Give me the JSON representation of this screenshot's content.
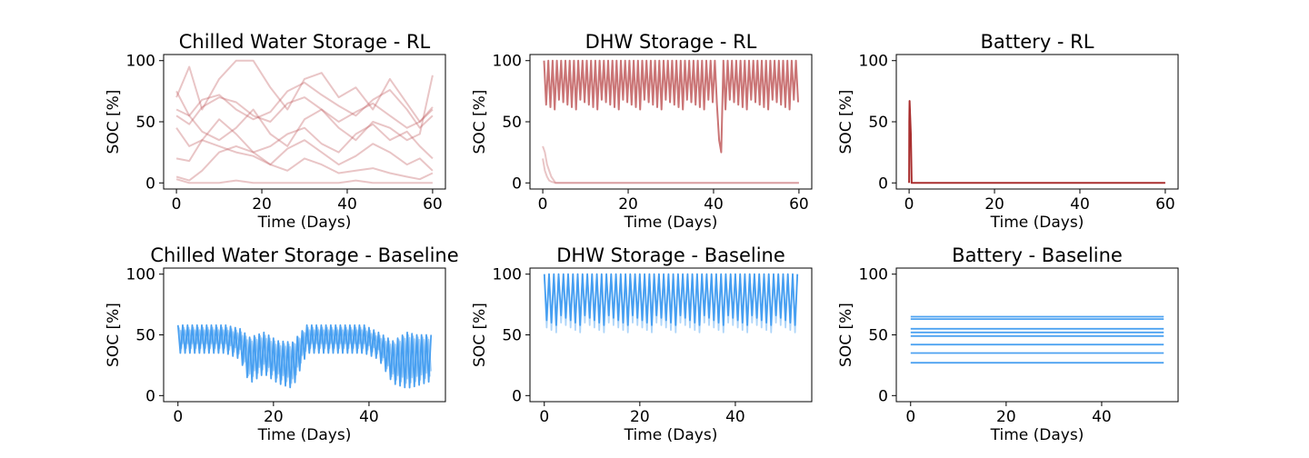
{
  "colors": {
    "rl": "#c0595b",
    "baseline": "#3a98f0",
    "axis": "#000000",
    "background": "#ffffff"
  },
  "chart_data": [
    {
      "id": "cw-rl",
      "type": "line",
      "title": "Chilled Water Storage - RL",
      "xlabel": "Time (Days)",
      "ylabel": "SOC [%]",
      "xlim": [
        -3,
        63
      ],
      "ylim": [
        -5,
        105
      ],
      "xticks": [
        0,
        20,
        40,
        60
      ],
      "yticks": [
        0,
        50,
        100
      ],
      "style": "rl",
      "series": [
        {
          "x": [
            0,
            3,
            6,
            10,
            14,
            18,
            22,
            26,
            30,
            34,
            38,
            42,
            46,
            50,
            54,
            57,
            60
          ],
          "values": [
            70,
            95,
            60,
            85,
            100,
            100,
            78,
            60,
            85,
            90,
            70,
            78,
            60,
            85,
            65,
            50,
            60
          ]
        },
        {
          "x": [
            0,
            3,
            6,
            10,
            14,
            18,
            22,
            26,
            30,
            34,
            38,
            42,
            46,
            50,
            54,
            57,
            60
          ],
          "values": [
            60,
            55,
            68,
            72,
            60,
            52,
            58,
            75,
            82,
            72,
            63,
            55,
            68,
            76,
            60,
            45,
            55
          ]
        },
        {
          "x": [
            0,
            3,
            6,
            10,
            14,
            18,
            22,
            26,
            30,
            34,
            38,
            42,
            46,
            50,
            54,
            57,
            60
          ],
          "values": [
            55,
            48,
            62,
            70,
            66,
            55,
            50,
            65,
            70,
            60,
            50,
            58,
            65,
            55,
            45,
            50,
            62
          ]
        },
        {
          "x": [
            0,
            3,
            6,
            10,
            14,
            18,
            22,
            26,
            30,
            34,
            38,
            42,
            46,
            50,
            54,
            57,
            60
          ],
          "values": [
            75,
            55,
            42,
            35,
            45,
            60,
            40,
            30,
            52,
            60,
            45,
            35,
            50,
            45,
            35,
            40,
            88
          ]
        },
        {
          "x": [
            0,
            3,
            6,
            10,
            14,
            18,
            22,
            26,
            30,
            34,
            38,
            42,
            46,
            50,
            54,
            57,
            60
          ],
          "values": [
            45,
            30,
            35,
            52,
            40,
            25,
            30,
            40,
            45,
            32,
            25,
            40,
            48,
            35,
            42,
            30,
            20
          ]
        },
        {
          "x": [
            0,
            3,
            6,
            10,
            14,
            18,
            22,
            26,
            30,
            34,
            38,
            42,
            46,
            50,
            54,
            57,
            60
          ],
          "values": [
            20,
            18,
            35,
            30,
            25,
            22,
            15,
            28,
            35,
            25,
            15,
            22,
            32,
            25,
            15,
            20,
            10
          ]
        },
        {
          "x": [
            0,
            3,
            6,
            10,
            14,
            18,
            22,
            26,
            30,
            34,
            38,
            42,
            46,
            50,
            54,
            57,
            60
          ],
          "values": [
            5,
            2,
            10,
            25,
            30,
            25,
            15,
            10,
            20,
            15,
            8,
            10,
            12,
            8,
            5,
            3,
            8
          ]
        },
        {
          "x": [
            0,
            3,
            6,
            10,
            14,
            18,
            22,
            26,
            30,
            34,
            38,
            42,
            46,
            50,
            54,
            57,
            60
          ],
          "values": [
            3,
            0,
            0,
            0,
            2,
            0,
            0,
            0,
            0,
            0,
            0,
            2,
            0,
            0,
            0,
            0,
            0
          ]
        }
      ]
    },
    {
      "id": "dhw-rl",
      "type": "line",
      "title": "DHW Storage - RL",
      "xlabel": "Time (Days)",
      "ylabel": "SOC [%]",
      "xlim": [
        -3,
        63
      ],
      "ylim": [
        -5,
        105
      ],
      "xticks": [
        0,
        20,
        40,
        60
      ],
      "yticks": [
        0,
        50,
        100
      ],
      "style": "rl",
      "oscillation": {
        "start": 0.3,
        "end": 60,
        "step": 0.5,
        "high": 100,
        "low": 60,
        "events": [
          {
            "x": 41.5,
            "value": 35
          },
          {
            "x": 42,
            "value": 25
          }
        ]
      },
      "series": [
        {
          "x": [
            0,
            0.5,
            1,
            2,
            3,
            5,
            60
          ],
          "values": [
            30,
            25,
            15,
            5,
            0,
            0,
            0
          ]
        },
        {
          "x": [
            0,
            0.5,
            1,
            1.5,
            2,
            3,
            60
          ],
          "values": [
            20,
            10,
            5,
            2,
            1,
            0,
            0
          ]
        }
      ]
    },
    {
      "id": "bat-rl",
      "type": "line",
      "title": "Battery - RL",
      "xlabel": "Time (Days)",
      "ylabel": "SOC [%]",
      "xlim": [
        -3,
        63
      ],
      "ylim": [
        -5,
        105
      ],
      "xticks": [
        0,
        20,
        40,
        60
      ],
      "yticks": [
        0,
        50,
        100
      ],
      "style": "rl-dark",
      "series": [
        {
          "x": [
            0,
            0.05,
            0.1,
            0.4,
            0.6,
            60
          ],
          "values": [
            0,
            50,
            67,
            40,
            0,
            0
          ]
        }
      ]
    },
    {
      "id": "cw-base",
      "type": "line",
      "title": "Chilled Water Storage - Baseline",
      "xlabel": "Time (Days)",
      "ylabel": "SOC [%]",
      "xlim": [
        -3,
        56
      ],
      "ylim": [
        -5,
        105
      ],
      "xticks": [
        0,
        20,
        40
      ],
      "yticks": [
        0,
        50,
        100
      ],
      "style": "baseline",
      "envelope": {
        "x": [
          0,
          5,
          10,
          13,
          15,
          18,
          21,
          24,
          27,
          30,
          33,
          36,
          39,
          42,
          45,
          48,
          50,
          53
        ],
        "upper": [
          58,
          58,
          58,
          55,
          48,
          52,
          45,
          44,
          58,
          58,
          58,
          58,
          58,
          52,
          45,
          52,
          50,
          50
        ],
        "lower": [
          35,
          35,
          35,
          30,
          10,
          18,
          10,
          6,
          35,
          35,
          35,
          35,
          35,
          30,
          10,
          6,
          8,
          12
        ]
      }
    },
    {
      "id": "dhw-base",
      "type": "line",
      "title": "DHW Storage - Baseline",
      "xlabel": "Time (Days)",
      "ylabel": "SOC [%]",
      "xlim": [
        -3,
        56
      ],
      "ylim": [
        -5,
        105
      ],
      "xticks": [
        0,
        20,
        40
      ],
      "yticks": [
        0,
        50,
        100
      ],
      "style": "baseline",
      "oscillation": {
        "start": 0,
        "end": 53,
        "step": 0.5,
        "high": 100,
        "low": 58,
        "events": []
      }
    },
    {
      "id": "bat-base",
      "type": "line",
      "title": "Battery - Baseline",
      "xlabel": "Time (Days)",
      "ylabel": "SOC [%]",
      "xlim": [
        -3,
        56
      ],
      "ylim": [
        -5,
        105
      ],
      "xticks": [
        0,
        20,
        40
      ],
      "yticks": [
        0,
        50,
        100
      ],
      "style": "baseline",
      "flat_levels": [
        27,
        35,
        42,
        49,
        52,
        55,
        63,
        65
      ],
      "x_range": [
        0,
        53
      ]
    }
  ]
}
